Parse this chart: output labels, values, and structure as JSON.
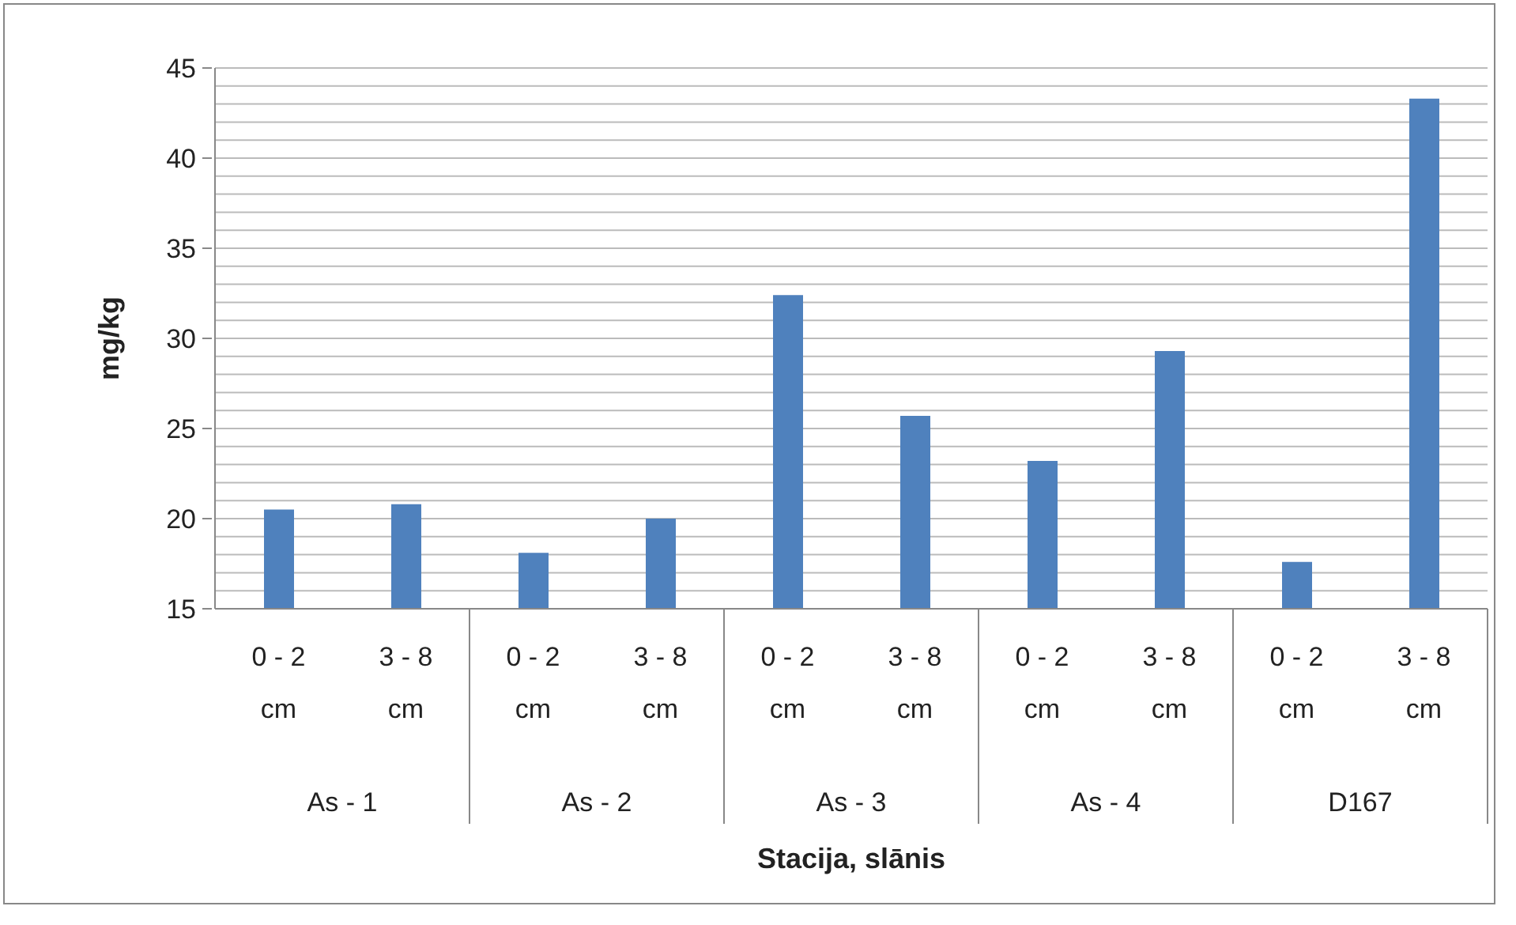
{
  "chart_data": {
    "type": "bar",
    "xlabel": "Stacija, slānis",
    "ylabel": "mg/kg",
    "categories": [
      "0 - 2 cm",
      "3 - 8 cm",
      "0 - 2 cm",
      "3 - 8 cm",
      "0 - 2 cm",
      "3 - 8 cm",
      "0 - 2 cm",
      "3 - 8 cm",
      "0 - 2 cm",
      "3 - 8 cm"
    ],
    "annotations": [
      "As - 1",
      "As - 2",
      "As - 3",
      "As - 4",
      "D167"
    ],
    "values": [
      20.5,
      20.8,
      18.1,
      20.0,
      32.4,
      25.7,
      23.2,
      29.3,
      17.6,
      43.3
    ],
    "color": "#4f81bd",
    "ylim": [
      15,
      45
    ],
    "yticks": [
      15,
      {
        "value": 16,
        "label": null
      },
      {
        "value": 17,
        "label": null
      },
      {
        "value": 18,
        "label": null
      },
      {
        "value": 19,
        "label": null
      },
      20,
      {
        "value": 21,
        "label": null
      },
      {
        "value": 22,
        "label": null
      },
      {
        "value": 23,
        "label": null
      },
      {
        "value": 24,
        "label": null
      },
      25,
      {
        "value": 26,
        "label": null
      },
      {
        "value": 27,
        "label": null
      },
      {
        "value": 28,
        "label": null
      },
      {
        "value": 29,
        "label": null
      },
      30,
      {
        "value": 31,
        "label": null
      },
      {
        "value": 32,
        "label": null
      },
      {
        "value": 33,
        "label": null
      },
      {
        "value": 34,
        "label": null
      },
      35,
      {
        "value": 36,
        "label": null
      },
      {
        "value": 37,
        "label": null
      },
      {
        "value": 38,
        "label": null
      },
      {
        "value": 39,
        "label": null
      },
      40,
      {
        "value": 41,
        "label": null
      },
      {
        "value": 42,
        "label": null
      },
      {
        "value": 43,
        "label": null
      },
      {
        "value": 44,
        "label": null
      },
      45
    ],
    "grid": true
  }
}
